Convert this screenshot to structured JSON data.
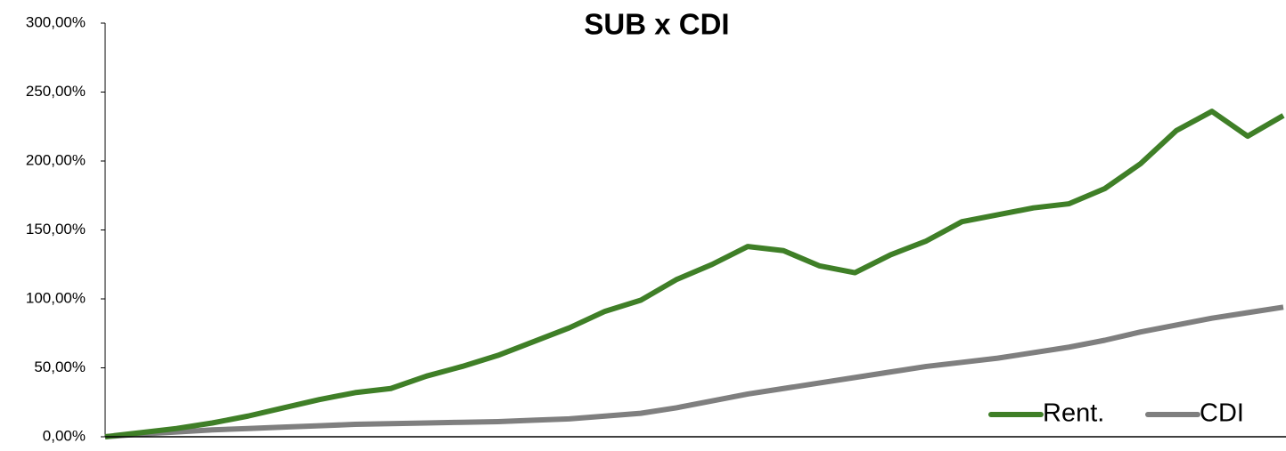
{
  "chart_data": {
    "type": "line",
    "title": "SUB x CDI",
    "categories": [
      null,
      null,
      null,
      null,
      null,
      null,
      null,
      null,
      null,
      null,
      null,
      null,
      null,
      null,
      null,
      null,
      null,
      null,
      null,
      null,
      null,
      null,
      null,
      null,
      null,
      null,
      null,
      null,
      null,
      null,
      null,
      null,
      null,
      null
    ],
    "series": [
      {
        "name": "Rent.",
        "color": "#3f7f27",
        "values": [
          0,
          3,
          6,
          10,
          15,
          21,
          27,
          32,
          35,
          44,
          51,
          59,
          69,
          79,
          91,
          99,
          114,
          125,
          138,
          135,
          124,
          119,
          132,
          142,
          156,
          161,
          166,
          169,
          180,
          198,
          222,
          236,
          218,
          233
        ]
      },
      {
        "name": "CDI",
        "color": "#7f7f7f",
        "values": [
          0,
          2,
          3.5,
          5,
          6,
          7,
          8,
          9,
          9.5,
          10,
          10.5,
          11,
          12,
          13,
          15,
          17,
          21,
          26,
          31,
          35,
          39,
          43,
          47,
          51,
          54,
          57,
          61,
          65,
          70,
          76,
          81,
          86,
          90,
          94
        ]
      }
    ],
    "ylim": [
      0,
      300
    ],
    "yticks": [
      {
        "value": 0,
        "label": "0,00%"
      },
      {
        "value": 50,
        "label": "50,00%"
      },
      {
        "value": 100,
        "label": "100,00%"
      },
      {
        "value": 150,
        "label": "150,00%"
      },
      {
        "value": 200,
        "label": "200,00%"
      },
      {
        "value": 250,
        "label": "250,00%"
      },
      {
        "value": 300,
        "label": "300,00%"
      }
    ],
    "grid": false,
    "legend": "bottom-right"
  }
}
